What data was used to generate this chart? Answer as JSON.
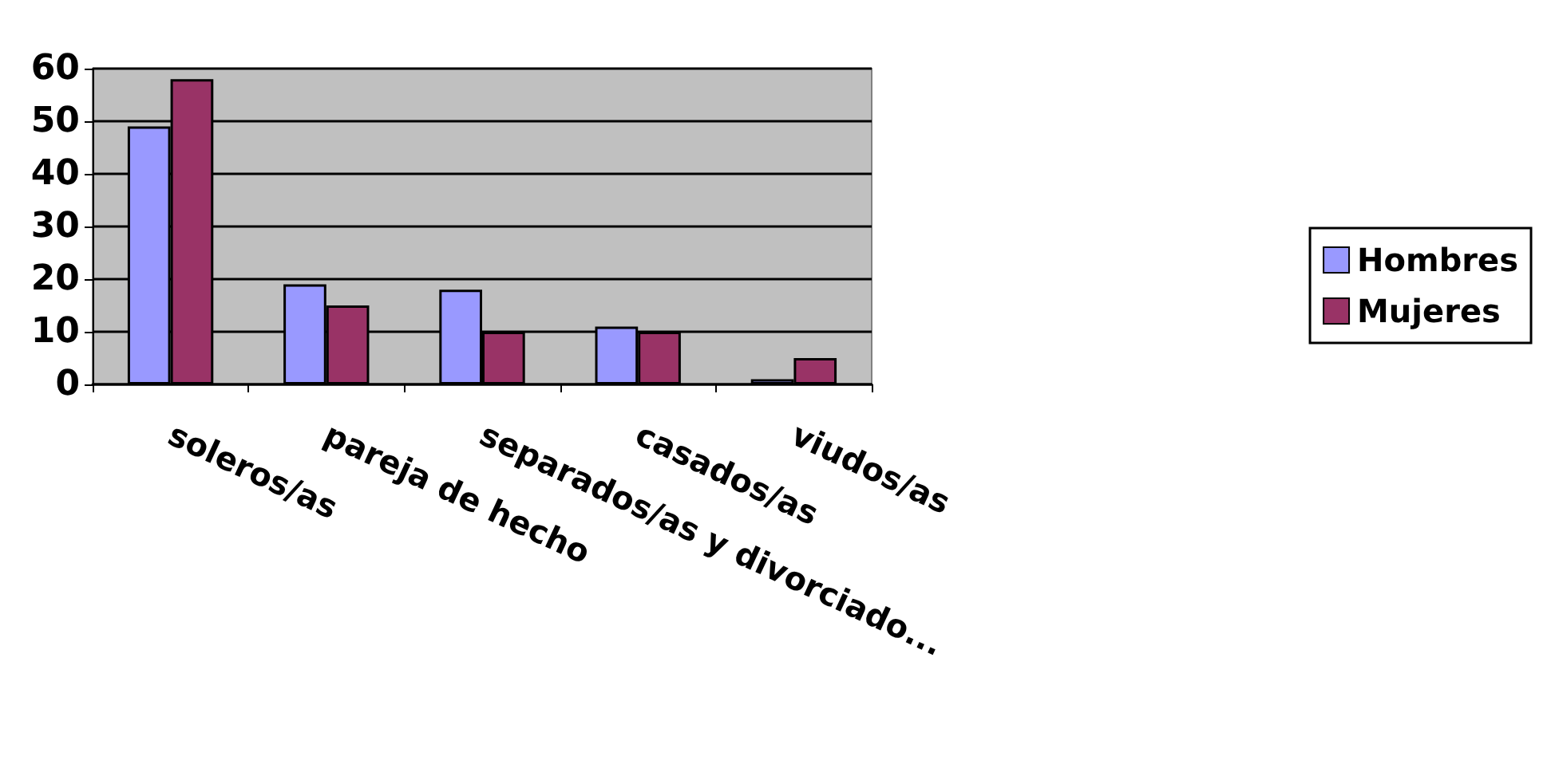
{
  "chart_data": {
    "type": "bar",
    "categories": [
      "soleros/as",
      "pareja de hecho",
      "separados/as y divorciado...",
      "casados/as",
      "viudos/as"
    ],
    "series": [
      {
        "name": "Hombres",
        "color": "#9999ff",
        "values": [
          49,
          19,
          18,
          11,
          1
        ]
      },
      {
        "name": "Mujeres",
        "color": "#993366",
        "values": [
          58,
          15,
          10,
          10,
          5
        ]
      }
    ],
    "ylim": [
      0,
      60
    ],
    "yticks": [
      0,
      10,
      20,
      30,
      40,
      50,
      60
    ],
    "grid": "y",
    "legend": "right"
  }
}
